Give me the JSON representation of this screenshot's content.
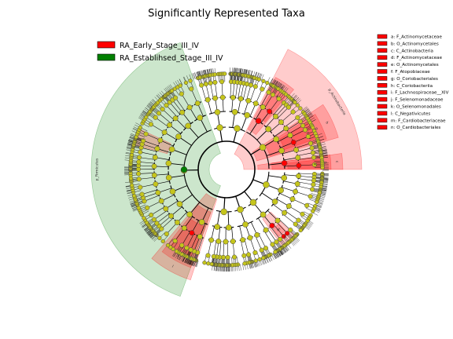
{
  "chart_data": {
    "type": "cladogram",
    "title": "Significantly Represented Taxa",
    "legend": [
      {
        "name": "RA_Early_Stage_III_IV",
        "color": "#ff0000"
      },
      {
        "name": "RA_Establihsed_Stage_III_IV",
        "color": "#008000"
      }
    ],
    "legend_placement": "top-left",
    "key_placement": "top-right",
    "key": [
      {
        "letter": "a",
        "label": "a: F_Actinomycetaceae",
        "group": "RA_Early_Stage_III_IV",
        "color": "#ff0000"
      },
      {
        "letter": "b",
        "label": "b: O_Actinomycetales",
        "group": "RA_Early_Stage_III_IV",
        "color": "#ff0000"
      },
      {
        "letter": "c",
        "label": "c: C_Actinobacteria",
        "group": "RA_Early_Stage_III_IV",
        "color": "#ff0000"
      },
      {
        "letter": "d",
        "label": "d: F_Actinomycetaceae",
        "group": "RA_Early_Stage_III_IV",
        "color": "#ff0000"
      },
      {
        "letter": "e",
        "label": "e: O_Actinomycetales",
        "group": "RA_Early_Stage_III_IV",
        "color": "#ff0000"
      },
      {
        "letter": "f",
        "label": "f: F_Atopobiaceae",
        "group": "RA_Early_Stage_III_IV",
        "color": "#ff0000"
      },
      {
        "letter": "g",
        "label": "g: O_Coriobacteriales",
        "group": "RA_Early_Stage_III_IV",
        "color": "#ff0000"
      },
      {
        "letter": "h",
        "label": "h: C_Coriobacteriia",
        "group": "RA_Early_Stage_III_IV",
        "color": "#ff0000"
      },
      {
        "letter": "i",
        "label": "i: F_Lachnospiraceae__XIV",
        "group": "RA_Early_Stage_III_IV",
        "color": "#ff0000"
      },
      {
        "letter": "j",
        "label": "j: F_Selenomonadaceae",
        "group": "RA_Early_Stage_III_IV",
        "color": "#ff0000"
      },
      {
        "letter": "k",
        "label": "k: O_Selenomonadales",
        "group": "RA_Early_Stage_III_IV",
        "color": "#ff0000"
      },
      {
        "letter": "l",
        "label": "l: C_Negativicutes",
        "group": "RA_Early_Stage_III_IV",
        "color": "#ff0000"
      },
      {
        "letter": "m",
        "label": "m: F_Cardiobacteriaceae",
        "group": "RA_Early_Stage_III_IV",
        "color": "#ff0000"
      },
      {
        "letter": "n",
        "label": "n: O_Cardiobacteriales",
        "group": "RA_Early_Stage_III_IV",
        "color": "#ff0000"
      }
    ],
    "highlighted_sectors": [
      {
        "label": "p_Actinobacteria",
        "group": "RA_Early_Stage_III_IV",
        "color": "#ff0000",
        "start_deg": -63,
        "end_deg": 0,
        "level": 1
      },
      {
        "label": "c",
        "group": "RA_Early_Stage_III_IV",
        "color": "#ff0000",
        "start_deg": -8,
        "end_deg": 0,
        "level": 2
      },
      {
        "label": "b",
        "group": "RA_Early_Stage_III_IV",
        "color": "#ff0000",
        "start_deg": -8,
        "end_deg": 0,
        "level": 3
      },
      {
        "label": "a",
        "group": "RA_Early_Stage_III_IV",
        "color": "#ff0000",
        "start_deg": -6,
        "end_deg": -1,
        "level": 4
      },
      {
        "label": "h",
        "group": "RA_Early_Stage_III_IV",
        "color": "#ff0000",
        "start_deg": -34,
        "end_deg": -16,
        "level": 2
      },
      {
        "label": "g",
        "group": "RA_Early_Stage_III_IV",
        "color": "#ff0000",
        "start_deg": -32,
        "end_deg": -17,
        "level": 3
      },
      {
        "label": "f",
        "group": "RA_Early_Stage_III_IV",
        "color": "#ff0000",
        "start_deg": -30,
        "end_deg": -19,
        "level": 4
      },
      {
        "label": "e",
        "group": "RA_Early_Stage_III_IV",
        "color": "#ff0000",
        "start_deg": -62,
        "end_deg": -50,
        "level": 3
      },
      {
        "label": "d",
        "group": "RA_Early_Stage_III_IV",
        "color": "#ff0000",
        "start_deg": -60,
        "end_deg": -51,
        "level": 4
      },
      {
        "label": "p_Firmicutes",
        "group": "RA_Establihsed_Stage_III_IV",
        "color": "#008000",
        "start_deg": 110,
        "end_deg": 250,
        "level": 1
      },
      {
        "label": "l",
        "group": "RA_Early_Stage_III_IV",
        "color": "#ff0000",
        "start_deg": 108,
        "end_deg": 130,
        "level": 2
      },
      {
        "label": "k",
        "group": "RA_Early_Stage_III_IV",
        "color": "#ff0000",
        "start_deg": 110,
        "end_deg": 128,
        "level": 3
      },
      {
        "label": "j",
        "group": "RA_Early_Stage_III_IV",
        "color": "#ff0000",
        "start_deg": 112,
        "end_deg": 126,
        "level": 4
      },
      {
        "label": "i",
        "group": "RA_Early_Stage_III_IV",
        "color": "#ff0000",
        "start_deg": 195,
        "end_deg": 205,
        "level": 4
      },
      {
        "label": "n",
        "group": "RA_Early_Stage_III_IV",
        "color": "#ff0000",
        "start_deg": 44,
        "end_deg": 54,
        "level": 4
      },
      {
        "label": "m",
        "group": "RA_Early_Stage_III_IV",
        "color": "#ff0000",
        "start_deg": 46,
        "end_deg": 52,
        "level": 5
      }
    ]
  }
}
